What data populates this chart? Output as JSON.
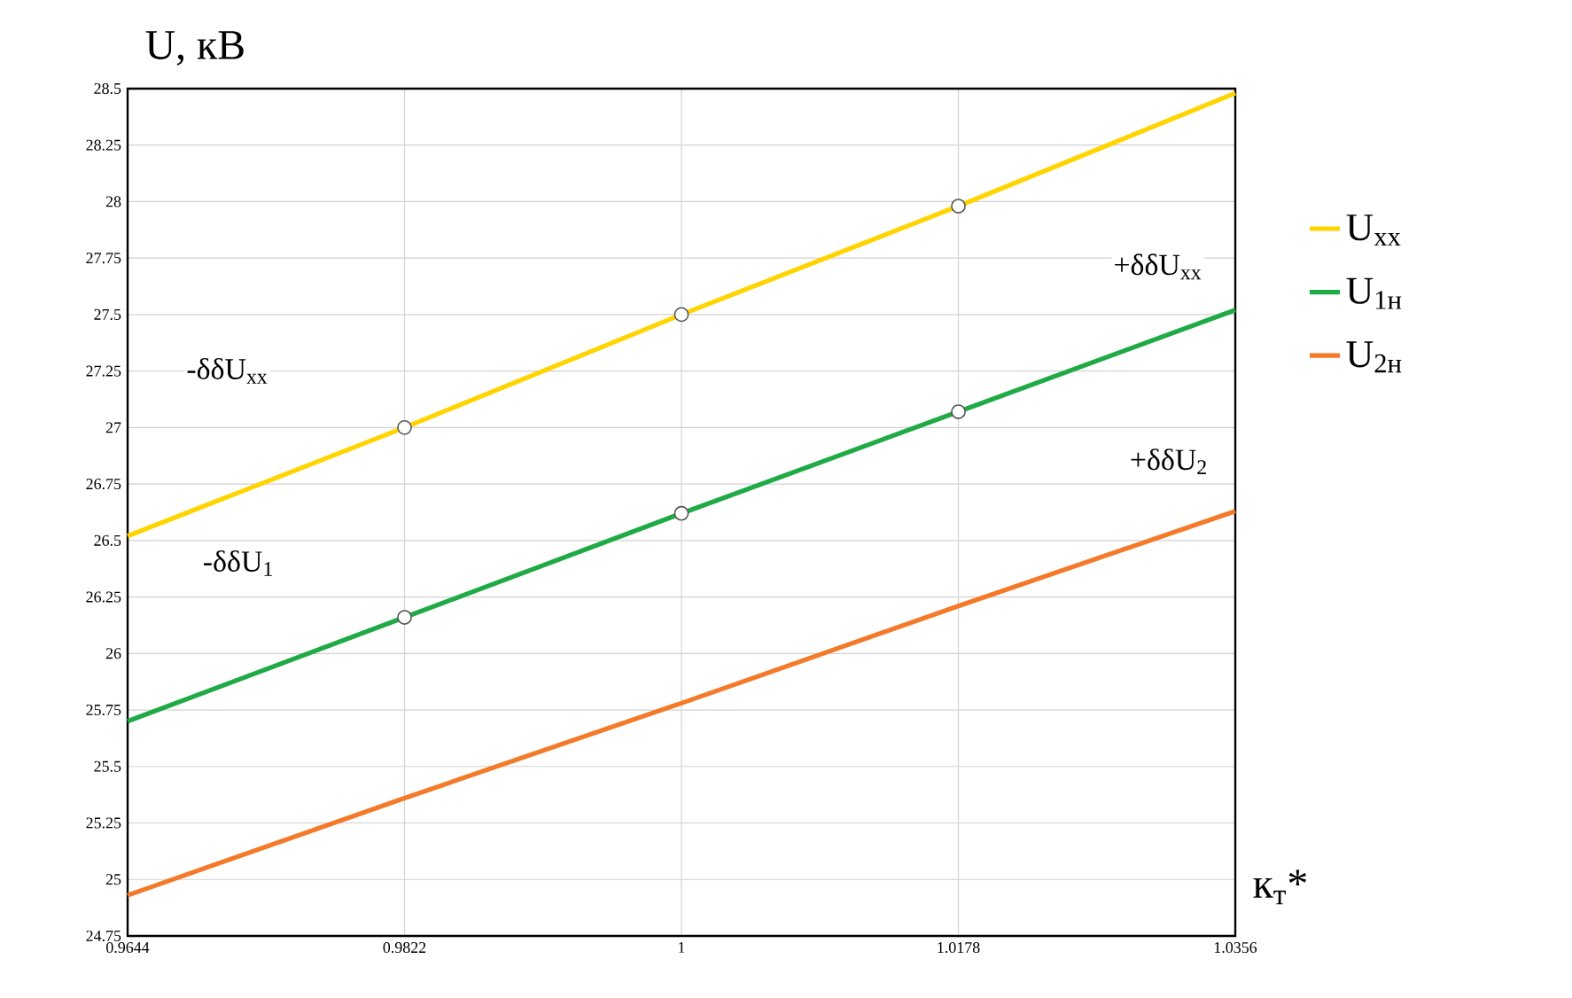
{
  "chart_data": {
    "type": "line",
    "xlabel": "к$_{т}$*",
    "ylabel": "U, кВ",
    "x": [
      0.9644,
      0.9822,
      1,
      1.0178,
      1.0356
    ],
    "series": [
      {
        "name": "U$_{xx}$",
        "color": "#ffd400",
        "values": [
          26.52,
          27.0,
          27.5,
          27.98,
          28.48
        ]
      },
      {
        "name": "U$_{1н}$",
        "color": "#1faa45",
        "values": [
          25.7,
          26.16,
          26.62,
          27.07,
          27.52
        ]
      },
      {
        "name": "U$_{2н}$",
        "color": "#f47a2a",
        "values": [
          24.93,
          25.36,
          25.78,
          26.21,
          26.63
        ]
      },
      {
        "type": "scatter",
        "color": "#555555",
        "x": [
          0.9822,
          1,
          1.0178,
          0.9822,
          1,
          1.0178
        ],
        "values": [
          27.0,
          27.5,
          27.98,
          26.16,
          26.62,
          27.07
        ]
      }
    ],
    "xlim": [
      0.9644,
      1.0356
    ],
    "ylim": [
      24.75,
      28.5
    ],
    "xticks": [
      0.9644,
      0.9822,
      1,
      1.0178,
      1.0356
    ],
    "yticks": [
      24.75,
      25,
      25.25,
      25.5,
      25.75,
      26,
      26.25,
      26.5,
      26.75,
      27,
      27.25,
      27.5,
      27.75,
      28,
      28.25,
      28.5
    ],
    "grid": true,
    "legend": "right",
    "annotations": [
      "-δδU$_{xx}$",
      "+δδU$_{xx}$",
      "+δδU$_{2}$",
      "-δδU$_{1}$"
    ]
  }
}
